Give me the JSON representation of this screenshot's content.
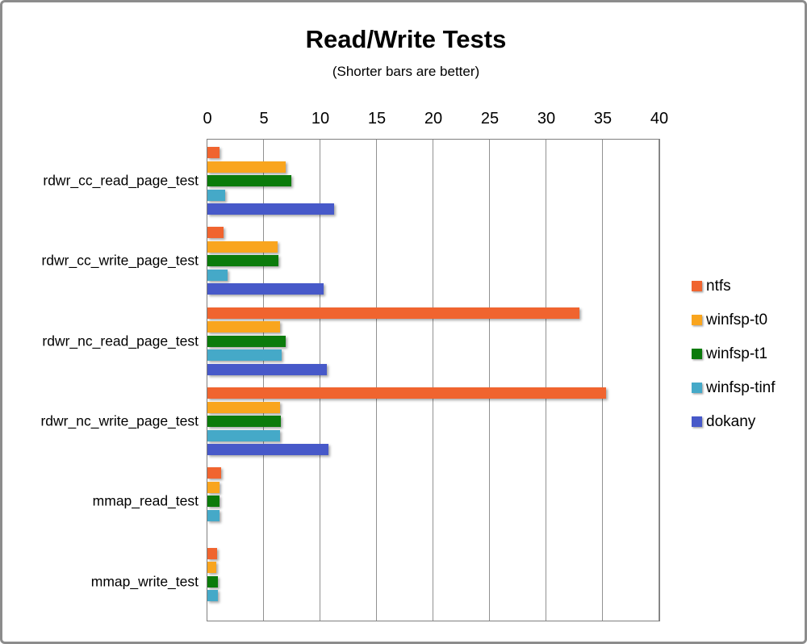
{
  "chart_data": {
    "type": "bar",
    "orientation": "horizontal",
    "title": "Read/Write Tests",
    "subtitle": "(Shorter bars are better)",
    "categories": [
      "rdwr_cc_read_page_test",
      "rdwr_cc_write_page_test",
      "rdwr_nc_read_page_test",
      "rdwr_nc_write_page_test",
      "mmap_read_test",
      "mmap_write_test"
    ],
    "series": [
      {
        "name": "ntfs",
        "color": "#F0642F",
        "values": [
          1.1,
          1.4,
          32.9,
          35.3,
          1.2,
          0.85
        ]
      },
      {
        "name": "winfsp-t0",
        "color": "#F9A51E",
        "values": [
          6.9,
          6.2,
          6.4,
          6.4,
          1.1,
          0.8
        ]
      },
      {
        "name": "winfsp-t1",
        "color": "#0B7B0B",
        "values": [
          7.4,
          6.3,
          6.9,
          6.5,
          1.05,
          0.9
        ]
      },
      {
        "name": "winfsp-tinf",
        "color": "#45A9C8",
        "values": [
          1.6,
          1.8,
          6.6,
          6.4,
          1.1,
          0.95
        ]
      },
      {
        "name": "dokany",
        "color": "#4759C9",
        "values": [
          11.2,
          10.3,
          10.6,
          10.7,
          0,
          0
        ]
      }
    ],
    "xlim": [
      0,
      40
    ],
    "xticks": [
      0,
      5,
      10,
      15,
      20,
      25,
      30,
      35,
      40
    ],
    "grid": "vertical",
    "legend_position": "right"
  }
}
